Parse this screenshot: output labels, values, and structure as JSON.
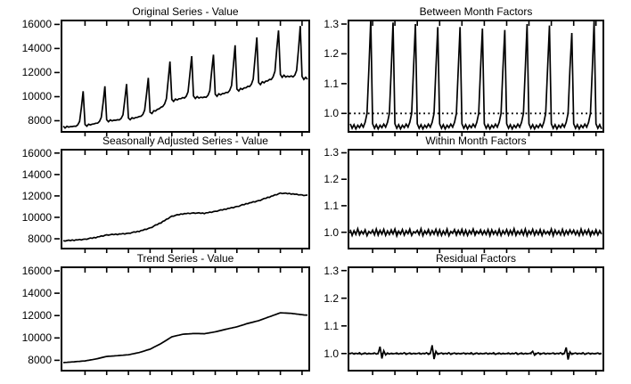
{
  "figure": {
    "background": "#ffffff",
    "line_color": "#000000",
    "x_tick_labels_visible": false
  },
  "chart_data": [
    {
      "type": "line",
      "title": "Original Series - Value",
      "ylabel": "",
      "xlabel": "",
      "ylim": [
        7000,
        16400
      ],
      "yticks": {
        "values": [
          8000,
          10000,
          12000,
          14000,
          16000
        ],
        "labels": [
          "8000",
          "10000",
          "12000",
          "14000",
          "16000"
        ]
      },
      "xticks_months": [
        12,
        24,
        36,
        48,
        60,
        72,
        84,
        96,
        108,
        120,
        132
      ],
      "values": [
        7546,
        7393,
        7535,
        7466,
        7514,
        7509,
        7548,
        7539,
        7650,
        7940,
        9077,
        10450,
        7691,
        7551,
        7712,
        7655,
        7721,
        7732,
        7789,
        7802,
        7941,
        8265,
        9479,
        10860,
        8077,
        7915,
        8064,
        7987,
        8042,
        8033,
        8078,
        8064,
        8184,
        8490,
        9709,
        11046,
        8222,
        8078,
        8251,
        8191,
        8268,
        8279,
        8348,
        8367,
        8526,
        8880,
        10201,
        11558,
        8704,
        8600,
        8828,
        8807,
        8940,
        8994,
        9119,
        9178,
        9399,
        9830,
        11351,
        12913,
        9766,
        9603,
        9800,
        9722,
        9824,
        9827,
        9920,
        9885,
        10033,
        10395,
        11899,
        13361,
        10055,
        9849,
        10008,
        9888,
        9952,
        9913,
        9968,
        9948,
        10114,
        10495,
        12032,
        13481,
        10200,
        10030,
        10233,
        10148,
        10256,
        10255,
        10353,
        10339,
        10518,
        10920,
        12532,
        14265,
        10634,
        10469,
        10688,
        10608,
        10733,
        10739,
        10855,
        10839,
        11032,
        11455,
        13153,
        14916,
        11165,
        10999,
        11233,
        11153,
        11292,
        11302,
        11433,
        11427,
        11647,
        12105,
        13918,
        15497,
        11841,
        11601,
        11778,
        11627,
        11709,
        11651,
        11722,
        11639,
        11786,
        12170,
        13904,
        15864,
        11677,
        11429,
        11602,
        11452
      ]
    },
    {
      "type": "line",
      "title": "Between Month Factors",
      "ylabel": "",
      "xlabel": "",
      "ylim": [
        0.935,
        1.315
      ],
      "refline": 1.0,
      "yticks": {
        "values": [
          1.0,
          1.1,
          1.2,
          1.3
        ],
        "labels": [
          "1.0",
          "1.1",
          "1.2",
          "1.3"
        ]
      },
      "xticks_months": [
        12,
        24,
        36,
        48,
        60,
        72,
        84,
        96,
        108,
        120,
        132
      ],
      "values": [
        0.965,
        0.95,
        0.962,
        0.948,
        0.96,
        0.952,
        0.964,
        0.954,
        0.97,
        1.0,
        1.15,
        1.315,
        0.965,
        0.95,
        0.962,
        0.948,
        0.96,
        0.952,
        0.964,
        0.954,
        0.97,
        1.0,
        1.15,
        1.305,
        0.965,
        0.95,
        0.962,
        0.948,
        0.96,
        0.952,
        0.964,
        0.954,
        0.97,
        1.0,
        1.15,
        1.3,
        0.965,
        0.95,
        0.962,
        0.948,
        0.96,
        0.952,
        0.964,
        0.954,
        0.97,
        1.0,
        1.15,
        1.29,
        0.965,
        0.95,
        0.962,
        0.948,
        0.96,
        0.952,
        0.964,
        0.954,
        0.97,
        1.0,
        1.15,
        1.29,
        0.965,
        0.95,
        0.962,
        0.948,
        0.96,
        0.952,
        0.964,
        0.954,
        0.97,
        1.0,
        1.15,
        1.285,
        0.965,
        0.95,
        0.962,
        0.948,
        0.96,
        0.952,
        0.964,
        0.954,
        0.97,
        1.0,
        1.15,
        1.28,
        0.965,
        0.95,
        0.962,
        0.948,
        0.96,
        0.952,
        0.964,
        0.954,
        0.97,
        1.0,
        1.15,
        1.3,
        0.965,
        0.95,
        0.962,
        0.948,
        0.96,
        0.952,
        0.964,
        0.954,
        0.97,
        1.0,
        1.15,
        1.295,
        0.965,
        0.95,
        0.962,
        0.948,
        0.96,
        0.952,
        0.964,
        0.954,
        0.97,
        1.0,
        1.15,
        1.27,
        0.965,
        0.95,
        0.962,
        0.948,
        0.96,
        0.952,
        0.964,
        0.954,
        0.97,
        1.0,
        1.15,
        1.31,
        0.965,
        0.95,
        0.962,
        0.948
      ]
    },
    {
      "type": "line",
      "title": "Seasonally Adjusted Series - Value",
      "ylabel": "",
      "xlabel": "",
      "ylim": [
        7000,
        16400
      ],
      "yticks": {
        "values": [
          8000,
          10000,
          12000,
          14000,
          16000
        ],
        "labels": [
          "8000",
          "10000",
          "12000",
          "14000",
          "16000"
        ]
      },
      "xticks_months": [
        12,
        24,
        36,
        48,
        60,
        72,
        84,
        96,
        108,
        120,
        132
      ],
      "values": [
        7820,
        7782,
        7833,
        7875,
        7827,
        7888,
        7830,
        7903,
        7887,
        7940,
        7893,
        7947,
        7970,
        7948,
        8017,
        8075,
        8043,
        8122,
        8080,
        8178,
        8187,
        8265,
        8243,
        8322,
        8370,
        8332,
        8383,
        8425,
        8377,
        8438,
        8380,
        8453,
        8437,
        8490,
        8443,
        8497,
        8520,
        8503,
        8577,
        8640,
        8613,
        8697,
        8660,
        8770,
        8790,
        8880,
        8870,
        8960,
        9020,
        9053,
        9177,
        9290,
        9313,
        9447,
        9460,
        9620,
        9690,
        9830,
        9870,
        10010,
        10120,
        10108,
        10187,
        10255,
        10233,
        10322,
        10290,
        10362,
        10343,
        10395,
        10347,
        10398,
        10420,
        10367,
        10403,
        10430,
        10367,
        10413,
        10340,
        10428,
        10427,
        10495,
        10463,
        10532,
        10570,
        10558,
        10637,
        10705,
        10683,
        10772,
        10740,
        10837,
        10843,
        10920,
        10897,
        10973,
        11020,
        11020,
        11110,
        11190,
        11180,
        11280,
        11260,
        11362,
        11373,
        11455,
        11437,
        11518,
        11570,
        11578,
        11677,
        11765,
        11763,
        11872,
        11860,
        11978,
        12007,
        12105,
        12103,
        12202,
        12270,
        12212,
        12243,
        12265,
        12197,
        12238,
        12160,
        12200,
        12150,
        12170,
        12090,
        12110,
        12100,
        12030,
        12060,
        12080
      ]
    },
    {
      "type": "line",
      "title": "Within Month Factors",
      "ylabel": "",
      "xlabel": "",
      "ylim": [
        0.935,
        1.315
      ],
      "refline": 1.0,
      "yticks": {
        "values": [
          1.0,
          1.1,
          1.2,
          1.3
        ],
        "labels": [
          "1.0",
          "1.1",
          "1.2",
          "1.3"
        ]
      },
      "xticks_months": [
        12,
        24,
        36,
        48,
        60,
        72,
        84,
        96,
        108,
        120,
        132
      ],
      "values": [
        1.01,
        0.988,
        1.006,
        0.992,
        1.013,
        0.99,
        1.004,
        0.994,
        1.009,
        0.987,
        1.003,
        0.996,
        1.008,
        0.99,
        1.012,
        0.989,
        1.007,
        0.993,
        1.011,
        0.988,
        1.005,
        0.992,
        1.009,
        0.994,
        1.012,
        0.986,
        1.004,
        0.993,
        1.01,
        0.989,
        1.006,
        0.995,
        1.012,
        0.988,
        1.002,
        0.997,
        1.007,
        0.991,
        1.013,
        0.987,
        1.005,
        0.994,
        1.01,
        0.99,
        1.006,
        0.993,
        1.011,
        0.989,
        1.009,
        0.988,
        1.005,
        0.992,
        1.012,
        0.987,
        1.003,
        0.996,
        1.01,
        0.989,
        1.007,
        0.993,
        1.011,
        0.99,
        1.008,
        0.988,
        1.006,
        0.994,
        1.012,
        0.989,
        1.004,
        0.995,
        1.009,
        0.991,
        1.006,
        0.992,
        1.01,
        0.987,
        1.009,
        0.993,
        1.005,
        0.99,
        1.011,
        0.988,
        1.006,
        0.994,
        1.01,
        0.989,
        1.007,
        0.991,
        1.013,
        0.988,
        1.004,
        0.993,
        1.008,
        0.99,
        1.012,
        0.987,
        1.005,
        0.993,
        1.011,
        0.989,
        1.006,
        0.992,
        1.01,
        0.988,
        1.007,
        0.994,
        1.003,
        0.991,
        1.012,
        0.987,
        1.008,
        0.993,
        1.005,
        0.99,
        1.011,
        0.989,
        1.006,
        0.992,
        1.009,
        0.995,
        1.008,
        0.991,
        1.005,
        0.988,
        1.012,
        0.99,
        1.007,
        0.993,
        1.01,
        0.987,
        1.004,
        0.992,
        1.009,
        0.99,
        1.006,
        0.993
      ]
    },
    {
      "type": "line",
      "title": "Trend Series - Value",
      "ylabel": "",
      "xlabel": "",
      "ylim": [
        7000,
        16400
      ],
      "yticks": {
        "values": [
          8000,
          10000,
          12000,
          14000,
          16000
        ],
        "labels": [
          "8000",
          "10000",
          "12000",
          "14000",
          "16000"
        ]
      },
      "xticks_months": [
        12,
        24,
        36,
        48,
        60,
        72,
        84,
        96,
        108,
        120,
        132
      ],
      "values": [
        7800,
        7812,
        7823,
        7835,
        7847,
        7858,
        7870,
        7883,
        7897,
        7910,
        7923,
        7937,
        7950,
        7978,
        8007,
        8035,
        8063,
        8092,
        8120,
        8158,
        8197,
        8235,
        8273,
        8312,
        8350,
        8362,
        8373,
        8385,
        8397,
        8408,
        8420,
        8433,
        8447,
        8460,
        8473,
        8487,
        8500,
        8533,
        8567,
        8600,
        8633,
        8667,
        8700,
        8750,
        8800,
        8850,
        8900,
        8950,
        9000,
        9083,
        9167,
        9250,
        9333,
        9417,
        9500,
        9600,
        9700,
        9800,
        9900,
        10000,
        10100,
        10138,
        10177,
        10215,
        10253,
        10292,
        10330,
        10342,
        10353,
        10365,
        10377,
        10388,
        10400,
        10397,
        10393,
        10390,
        10387,
        10383,
        10380,
        10408,
        10437,
        10465,
        10493,
        10522,
        10550,
        10588,
        10627,
        10665,
        10703,
        10742,
        10780,
        10817,
        10853,
        10890,
        10927,
        10963,
        11000,
        11050,
        11100,
        11150,
        11200,
        11250,
        11300,
        11342,
        11383,
        11425,
        11467,
        11508,
        11550,
        11608,
        11667,
        11725,
        11783,
        11842,
        11900,
        11958,
        12017,
        12075,
        12133,
        12192,
        12250,
        12242,
        12233,
        12225,
        12217,
        12208,
        12200,
        12180,
        12160,
        12140,
        12120,
        12100,
        12080,
        12060,
        12050,
        12040
      ]
    },
    {
      "type": "line",
      "title": "Residual Factors",
      "ylabel": "",
      "xlabel": "",
      "ylim": [
        0.935,
        1.315
      ],
      "refline": 1.0,
      "yticks": {
        "values": [
          1.0,
          1.1,
          1.2,
          1.3
        ],
        "labels": [
          "1.0",
          "1.1",
          "1.2",
          "1.3"
        ]
      },
      "xticks_months": [
        12,
        24,
        36,
        48,
        60,
        72,
        84,
        96,
        108,
        120,
        132
      ],
      "values": [
        1.0,
        1.002,
        0.998,
        1.001,
        0.999,
        1.003,
        0.997,
        1.0,
        1.002,
        0.998,
        1.001,
        0.999,
        1.0,
        1.002,
        0.998,
        1.001,
        1.025,
        0.982,
        1.01,
        0.995,
        1.002,
        0.998,
        1.001,
        0.999,
        1.0,
        1.002,
        0.998,
        1.001,
        0.999,
        1.003,
        0.997,
        1.0,
        1.002,
        0.998,
        1.001,
        0.999,
        1.0,
        1.002,
        0.998,
        1.001,
        0.999,
        1.003,
        0.997,
        1.0,
        1.03,
        0.98,
        1.008,
        0.997,
        1.0,
        1.002,
        0.998,
        1.001,
        0.999,
        1.003,
        0.997,
        1.0,
        1.002,
        0.998,
        1.001,
        0.999,
        1.0,
        1.002,
        0.998,
        1.001,
        0.999,
        1.003,
        0.997,
        1.0,
        1.002,
        0.998,
        1.001,
        0.999,
        1.0,
        1.002,
        0.998,
        1.001,
        0.999,
        1.003,
        0.997,
        1.0,
        1.002,
        0.998,
        1.001,
        0.999,
        1.0,
        1.002,
        0.998,
        1.001,
        0.999,
        1.003,
        0.997,
        1.0,
        1.002,
        0.998,
        1.001,
        0.999,
        1.0,
        1.002,
        1.008,
        0.994,
        0.999,
        1.003,
        0.997,
        1.0,
        1.002,
        0.998,
        1.001,
        0.999,
        1.0,
        1.002,
        0.998,
        1.001,
        0.999,
        1.003,
        0.997,
        1.0,
        1.022,
        0.978,
        1.006,
        0.997,
        1.0,
        1.002,
        0.998,
        1.001,
        0.999,
        1.003,
        0.997,
        1.0,
        1.002,
        0.998,
        1.001,
        0.999,
        1.0,
        1.002,
        0.998,
        1.001
      ]
    }
  ]
}
